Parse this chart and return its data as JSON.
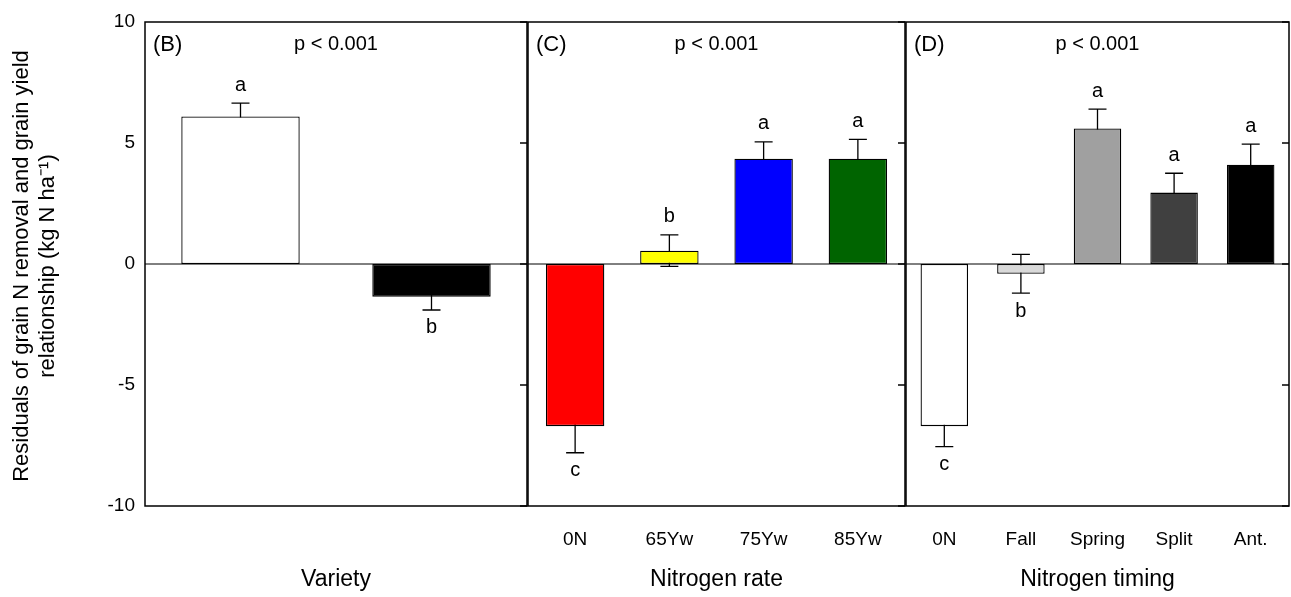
{
  "chart_data": [
    {
      "type": "bar",
      "ylabel": "Residuals of grain N removal and grain yield relationship (kg N ha⁻¹)",
      "xlabel": "Variety",
      "annotations": [
        "(B)",
        "p < 0.001"
      ],
      "categories": [
        null,
        null
      ],
      "values": [
        6.1,
        -1.35
      ],
      "errors": [
        0.55,
        0.55
      ],
      "value_labels": [
        "a",
        "b"
      ],
      "colors": [
        "#ffffff",
        "#000000"
      ],
      "ylim": [
        -10,
        10
      ],
      "yticks": [
        -10,
        -5,
        0,
        5,
        10
      ],
      "ref_lines": [
        {
          "axis": "y",
          "value": 0
        }
      ]
    },
    {
      "type": "bar",
      "xlabel": "Nitrogen rate",
      "annotations": [
        "(C)",
        "p < 0.001"
      ],
      "categories": [
        "0N",
        "65Yw",
        "75Yw",
        "85Yw"
      ],
      "values": [
        -6.7,
        0.55,
        4.35,
        4.35
      ],
      "errors": [
        1.1,
        0.65,
        0.7,
        0.8
      ],
      "value_labels": [
        "c",
        "b",
        "a",
        "a"
      ],
      "colors": [
        "#ff0000",
        "#ffff00",
        "#0000ff",
        "#006400"
      ],
      "ylim": [
        -10,
        10
      ],
      "yticks": [
        -10,
        -5,
        0,
        5,
        10
      ],
      "tick_labels": "x",
      "ref_lines": [
        {
          "axis": "y",
          "value": 0
        }
      ]
    },
    {
      "type": "bar",
      "xlabel": "Nitrogen timing",
      "annotations": [
        "(D)",
        "p < 0.001"
      ],
      "categories": [
        "0N",
        "Fall",
        "Spring",
        "Split",
        "Ant."
      ],
      "values": [
        -6.7,
        -0.4,
        5.6,
        2.95,
        4.1
      ],
      "errors": [
        0.85,
        0.8,
        0.8,
        0.8,
        0.85
      ],
      "value_labels": [
        "c",
        "b",
        "a",
        "a",
        "a"
      ],
      "colors": [
        "#ffffff",
        "#d9d9d9",
        "#a0a0a0",
        "#404040",
        "#000000"
      ],
      "ylim": [
        -10,
        10
      ],
      "yticks": [
        -10,
        -5,
        0,
        5,
        10
      ],
      "tick_labels": "x",
      "ref_lines": [
        {
          "axis": "y",
          "value": 0
        }
      ]
    }
  ]
}
